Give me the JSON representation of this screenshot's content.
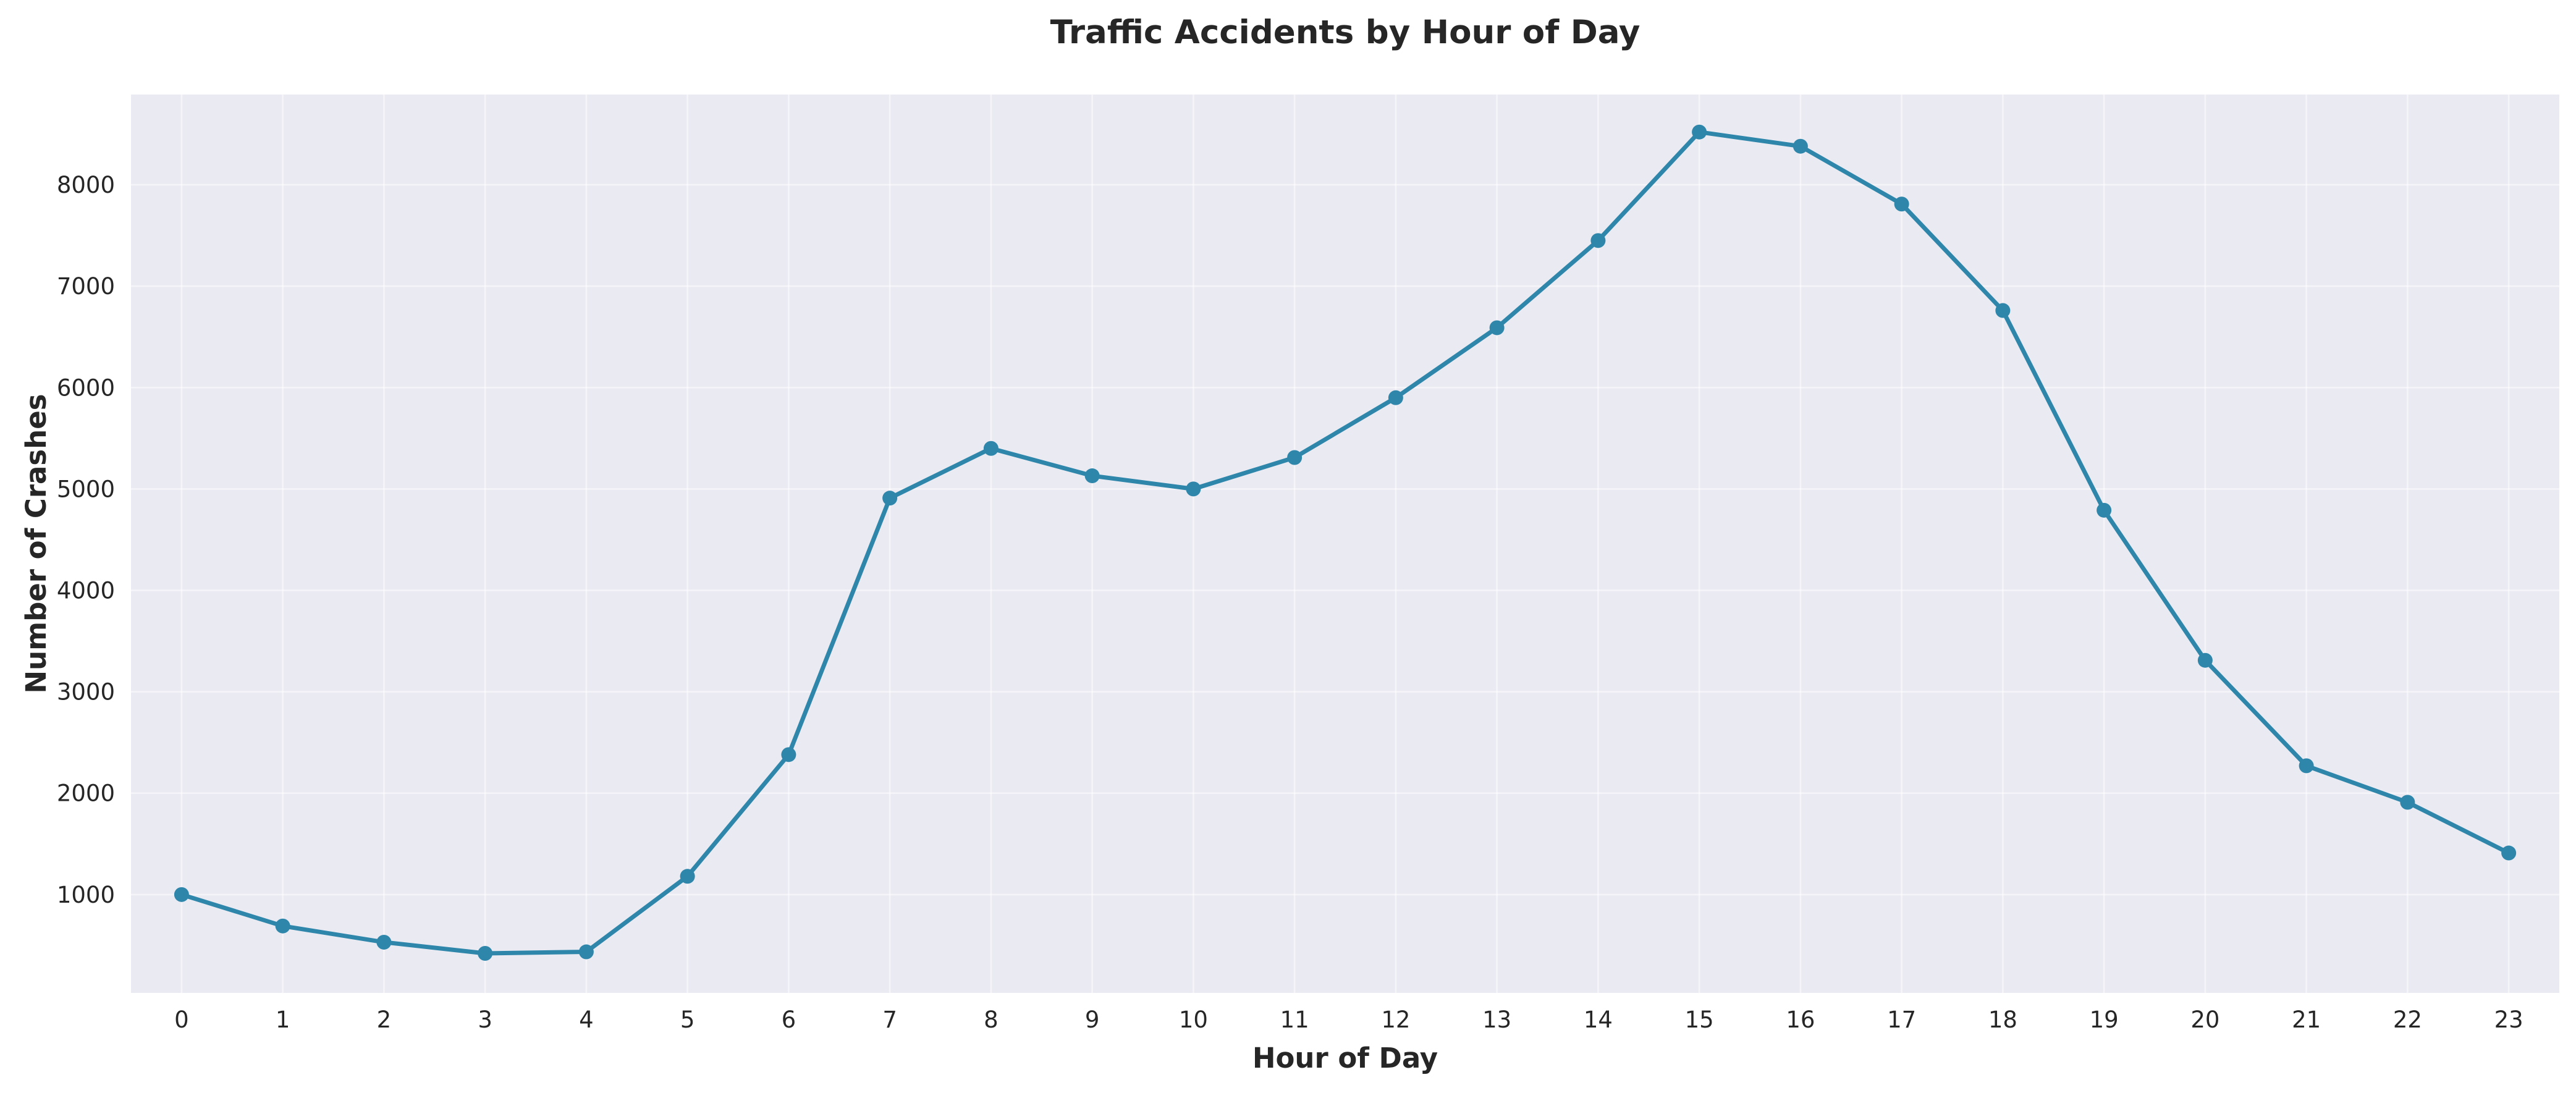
{
  "chart_data": {
    "type": "line",
    "title": "Traffic Accidents by Hour of Day",
    "xlabel": "Hour of Day",
    "ylabel": "Number of Crashes",
    "x": [
      0,
      1,
      2,
      3,
      4,
      5,
      6,
      7,
      8,
      9,
      10,
      11,
      12,
      13,
      14,
      15,
      16,
      17,
      18,
      19,
      20,
      21,
      22,
      23
    ],
    "x_tick_labels": [
      "0",
      "1",
      "2",
      "3",
      "4",
      "5",
      "6",
      "7",
      "8",
      "9",
      "10",
      "11",
      "12",
      "13",
      "14",
      "15",
      "16",
      "17",
      "18",
      "19",
      "20",
      "21",
      "22",
      "23"
    ],
    "y_ticks": [
      1000,
      2000,
      3000,
      4000,
      5000,
      6000,
      7000,
      8000
    ],
    "y_tick_labels": [
      "1000",
      "2000",
      "3000",
      "4000",
      "5000",
      "6000",
      "7000",
      "8000"
    ],
    "xlim": [
      -0.5,
      23.5
    ],
    "ylim": [
      30,
      8890
    ],
    "grid": true,
    "series": [
      {
        "values": [
          1000,
          690,
          530,
          420,
          435,
          1180,
          2380,
          4910,
          5400,
          5130,
          5000,
          5310,
          5900,
          6590,
          7450,
          8520,
          8380,
          7810,
          6760,
          4790,
          3310,
          2270,
          1910,
          1410
        ],
        "color": "#2e86ab",
        "marker": "circle"
      }
    ],
    "background_color": "#eaeaf2"
  }
}
